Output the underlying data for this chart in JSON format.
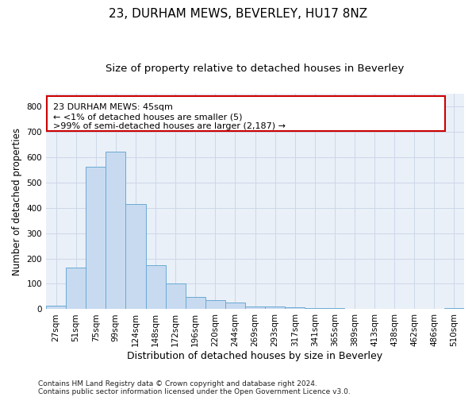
{
  "title": "23, DURHAM MEWS, BEVERLEY, HU17 8NZ",
  "subtitle": "Size of property relative to detached houses in Beverley",
  "xlabel": "Distribution of detached houses by size in Beverley",
  "ylabel": "Number of detached properties",
  "bar_color": "#c8daf0",
  "bar_edge_color": "#6aaad4",
  "bg_color": "#eaf0f8",
  "categories": [
    "27sqm",
    "51sqm",
    "75sqm",
    "99sqm",
    "124sqm",
    "148sqm",
    "172sqm",
    "196sqm",
    "220sqm",
    "244sqm",
    "269sqm",
    "293sqm",
    "317sqm",
    "341sqm",
    "365sqm",
    "389sqm",
    "413sqm",
    "438sqm",
    "462sqm",
    "486sqm",
    "510sqm"
  ],
  "values": [
    15,
    163,
    562,
    620,
    413,
    172,
    103,
    49,
    37,
    28,
    12,
    11,
    8,
    5,
    4,
    0,
    0,
    0,
    0,
    0,
    5
  ],
  "ylim": [
    0,
    850
  ],
  "yticks": [
    0,
    100,
    200,
    300,
    400,
    500,
    600,
    700,
    800
  ],
  "annotation_line1": "23 DURHAM MEWS: 45sqm",
  "annotation_line2": "← <1% of detached houses are smaller (5)",
  "annotation_line3": ">99% of semi-detached houses are larger (2,187) →",
  "footnote_line1": "Contains HM Land Registry data © Crown copyright and database right 2024.",
  "footnote_line2": "Contains public sector information licensed under the Open Government Licence v3.0.",
  "grid_color": "#cdd7e8",
  "title_fontsize": 11,
  "subtitle_fontsize": 9.5,
  "xlabel_fontsize": 9,
  "ylabel_fontsize": 8.5,
  "tick_fontsize": 7.5,
  "ann_fontsize": 8,
  "footnote_fontsize": 6.5
}
